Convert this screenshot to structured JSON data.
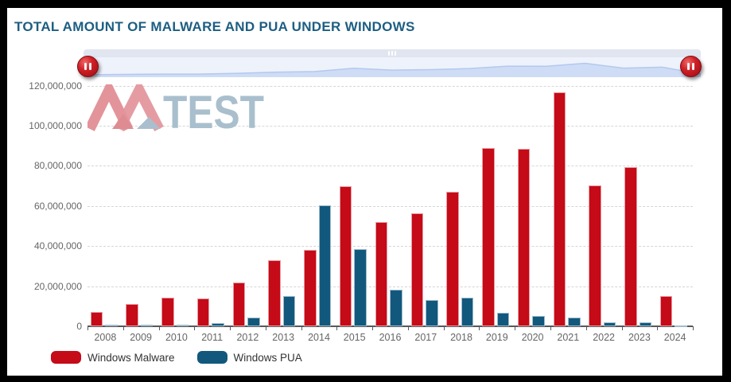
{
  "header": {
    "title": "TOTAL AMOUNT OF MALWARE AND PUA UNDER WINDOWS",
    "title_color": "#1d5e82"
  },
  "navigator": {
    "top_strip_color": "#e1e5f0",
    "body_color": "#eef2fb",
    "area_line_color": "#b3c9ee",
    "area_fill_color": "#cfdcf5",
    "handle_color": "#c01220",
    "handle_icon": "pause-icon",
    "grip_icon": "drag-grip-icon"
  },
  "watermark": {
    "mark": "AV",
    "text": "TEST",
    "red": "#e2949a",
    "blue": "#a9bfcd"
  },
  "legend": {
    "items": [
      {
        "label": "Windows Malware",
        "color": "#c50a18"
      },
      {
        "label": "Windows PUA",
        "color": "#12587d"
      }
    ]
  },
  "chart_data": {
    "type": "bar",
    "title": "TOTAL AMOUNT OF MALWARE AND PUA UNDER WINDOWS",
    "categories": [
      "2008",
      "2009",
      "2010",
      "2011",
      "2012",
      "2013",
      "2014",
      "2015",
      "2016",
      "2017",
      "2018",
      "2019",
      "2020",
      "2021",
      "2022",
      "2023",
      "2024"
    ],
    "series": [
      {
        "name": "Windows Malware",
        "color": "#c50a18",
        "values": [
          7300000,
          11000000,
          14300000,
          14000000,
          21700000,
          33000000,
          38000000,
          70000000,
          52000000,
          56500000,
          67000000,
          89000000,
          88500000,
          116500000,
          70300000,
          79500000,
          15000000
        ]
      },
      {
        "name": "Windows PUA",
        "color": "#12587d",
        "values": [
          700000,
          700000,
          800000,
          1500000,
          4200000,
          15000000,
          60500000,
          38500000,
          18300000,
          13000000,
          14300000,
          6600000,
          5000000,
          4500000,
          1900000,
          2100000,
          400000
        ]
      }
    ],
    "xlabel": "",
    "ylabel": "",
    "ylim": [
      0,
      120000000
    ],
    "ytick_interval": 20000000,
    "ytick_labels": [
      "0",
      "20,000,000",
      "40,000,000",
      "60,000,000",
      "80,000,000",
      "100,000,000",
      "120,000,000"
    ],
    "grid": "horizontal-dashed",
    "legend_position": "bottom-left"
  }
}
